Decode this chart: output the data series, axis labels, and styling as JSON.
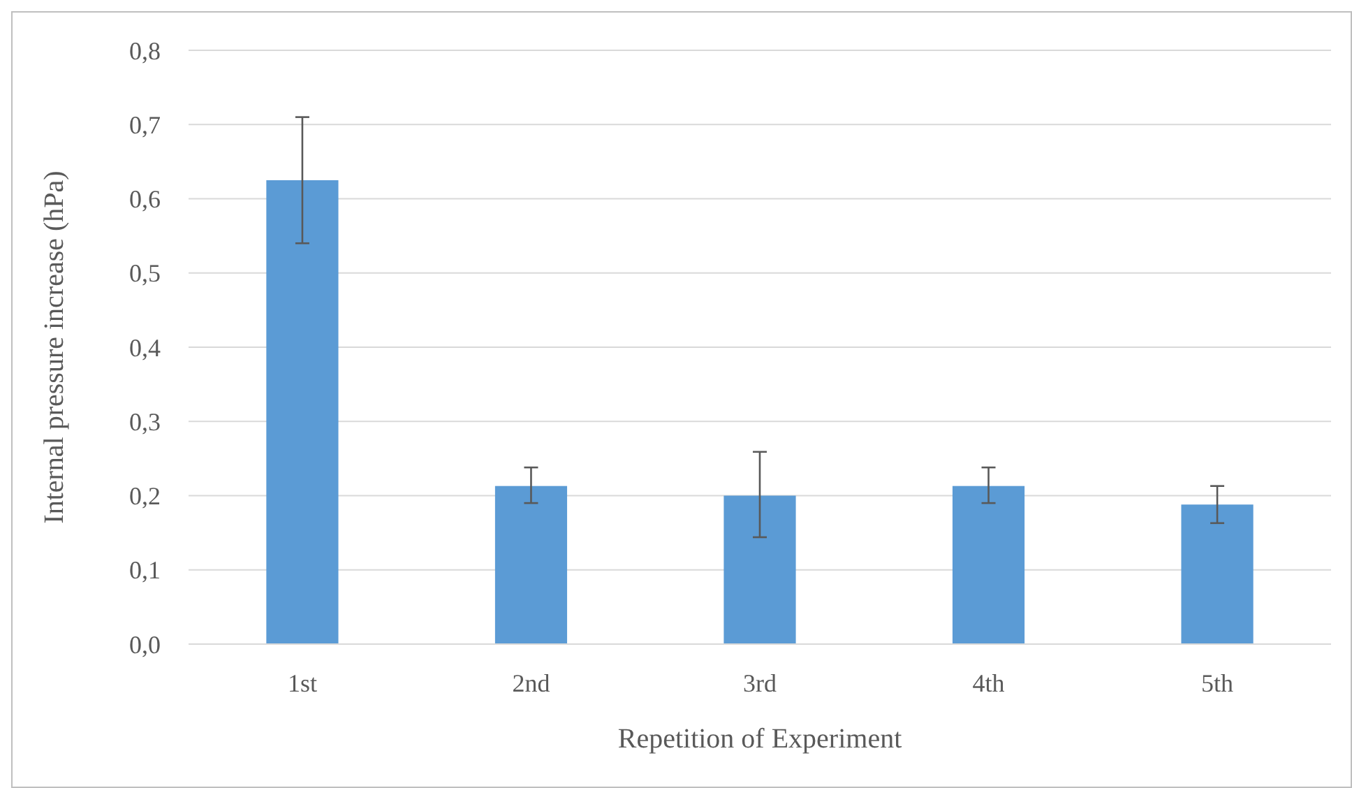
{
  "chart_data": {
    "type": "bar",
    "xlabel": "Repetition of Experiment",
    "ylabel": "Internal pressure increase  (hPa)",
    "categories": [
      "1st",
      "2nd",
      "3rd",
      "4th",
      "5th"
    ],
    "values": [
      0.625,
      0.213,
      0.2,
      0.213,
      0.188
    ],
    "errors": [
      [
        0.54,
        0.71
      ],
      [
        0.19,
        0.238
      ],
      [
        0.144,
        0.259
      ],
      [
        0.19,
        0.238
      ],
      [
        0.163,
        0.213
      ]
    ],
    "color": "#5b9bd5",
    "ylim": [
      0,
      0.8
    ],
    "yticks": [
      {
        "value": 0,
        "label": "0,0"
      },
      {
        "value": 0.1,
        "label": "0,1"
      },
      {
        "value": 0.2,
        "label": "0,2"
      },
      {
        "value": 0.3,
        "label": "0,3"
      },
      {
        "value": 0.4,
        "label": "0,4"
      },
      {
        "value": 0.5,
        "label": "0,5"
      },
      {
        "value": 0.6,
        "label": "0,6"
      },
      {
        "value": 0.7,
        "label": "0,7"
      },
      {
        "value": 0.8,
        "label": "0,8"
      }
    ],
    "grid": "y"
  }
}
